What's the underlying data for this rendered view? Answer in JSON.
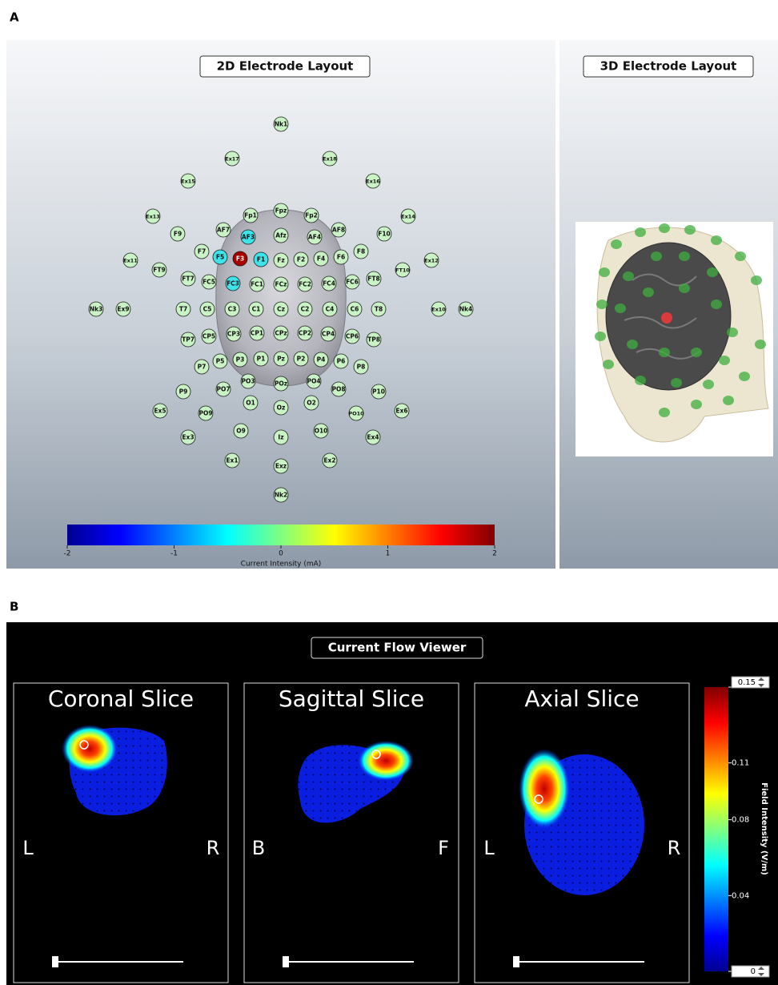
{
  "panel_a": {
    "label": "A",
    "layout_2d": {
      "title": "2D Electrode Layout",
      "electrode_color": "#c9f3c4",
      "electrodes": [
        {
          "label": "Nk1"
        },
        {
          "label": "Ex17"
        },
        {
          "label": "Ex18"
        },
        {
          "label": "Ex15"
        },
        {
          "label": "Ex16"
        },
        {
          "label": "Ex13"
        },
        {
          "label": "Fp1"
        },
        {
          "label": "Fpz"
        },
        {
          "label": "Fp2"
        },
        {
          "label": "Ex14"
        },
        {
          "label": "F9"
        },
        {
          "label": "AF7"
        },
        {
          "label": "AF3",
          "color": "#3fe3ea"
        },
        {
          "label": "Afz"
        },
        {
          "label": "AF4"
        },
        {
          "label": "AF8"
        },
        {
          "label": "F10"
        },
        {
          "label": "F7"
        },
        {
          "label": "F5",
          "color": "#3fe3ea"
        },
        {
          "label": "F3",
          "color": "#a80000"
        },
        {
          "label": "F1",
          "color": "#3fe3ea"
        },
        {
          "label": "Fz"
        },
        {
          "label": "F2"
        },
        {
          "label": "F4"
        },
        {
          "label": "F6"
        },
        {
          "label": "F8"
        },
        {
          "label": "Ex11"
        },
        {
          "label": "Ex12"
        },
        {
          "label": "FT9"
        },
        {
          "label": "FT10"
        },
        {
          "label": "FT7"
        },
        {
          "label": "FC5"
        },
        {
          "label": "FC3",
          "color": "#3fe3ea"
        },
        {
          "label": "FC1"
        },
        {
          "label": "FCz"
        },
        {
          "label": "FC2"
        },
        {
          "label": "FC4"
        },
        {
          "label": "FC6"
        },
        {
          "label": "FT8"
        },
        {
          "label": "Nk3"
        },
        {
          "label": "Ex9"
        },
        {
          "label": "T7"
        },
        {
          "label": "C5"
        },
        {
          "label": "C3"
        },
        {
          "label": "C1"
        },
        {
          "label": "Cz"
        },
        {
          "label": "C2"
        },
        {
          "label": "C4"
        },
        {
          "label": "C6"
        },
        {
          "label": "T8"
        },
        {
          "label": "Ex10"
        },
        {
          "label": "Nk4"
        },
        {
          "label": "TP7"
        },
        {
          "label": "CP5"
        },
        {
          "label": "CP3"
        },
        {
          "label": "CP1"
        },
        {
          "label": "CPz"
        },
        {
          "label": "CP2"
        },
        {
          "label": "CP4"
        },
        {
          "label": "CP6"
        },
        {
          "label": "TP8"
        },
        {
          "label": "P7"
        },
        {
          "label": "P5"
        },
        {
          "label": "P3"
        },
        {
          "label": "P1"
        },
        {
          "label": "Pz"
        },
        {
          "label": "P2"
        },
        {
          "label": "P4"
        },
        {
          "label": "P6"
        },
        {
          "label": "P8"
        },
        {
          "label": "PO3"
        },
        {
          "label": "POz"
        },
        {
          "label": "PO4"
        },
        {
          "label": "P9"
        },
        {
          "label": "PO7"
        },
        {
          "label": "PO8"
        },
        {
          "label": "P10"
        },
        {
          "label": "O1"
        },
        {
          "label": "Oz"
        },
        {
          "label": "O2"
        },
        {
          "label": "Ex5"
        },
        {
          "label": "PO9"
        },
        {
          "label": "PO10"
        },
        {
          "label": "Ex6"
        },
        {
          "label": "Ex3"
        },
        {
          "label": "O9"
        },
        {
          "label": "Iz"
        },
        {
          "label": "O10"
        },
        {
          "label": "Ex4"
        },
        {
          "label": "Ex1"
        },
        {
          "label": "Exz"
        },
        {
          "label": "Ex2"
        },
        {
          "label": "Nk2"
        }
      ]
    },
    "colorbar": {
      "label": "Current Intensity (mA)",
      "lim": [
        -2,
        2
      ],
      "ticks": [
        -2,
        -1,
        0,
        1,
        2
      ]
    },
    "layout_3d": {
      "title": "3D Electrode Layout"
    }
  },
  "panel_b": {
    "label": "B",
    "title": "Current Flow Viewer",
    "slices": [
      {
        "title": "Coronal Slice",
        "left": "L",
        "right": "R"
      },
      {
        "title": "Sagittal Slice",
        "left": "B",
        "right": "F"
      },
      {
        "title": "Axial Slice",
        "left": "L",
        "right": "R"
      }
    ],
    "colorbar": {
      "label": "Field Intensity (V/m)",
      "lim": [
        0,
        0.15
      ],
      "ticks": [
        0,
        0.04,
        0.08,
        0.11,
        0.15
      ]
    }
  }
}
